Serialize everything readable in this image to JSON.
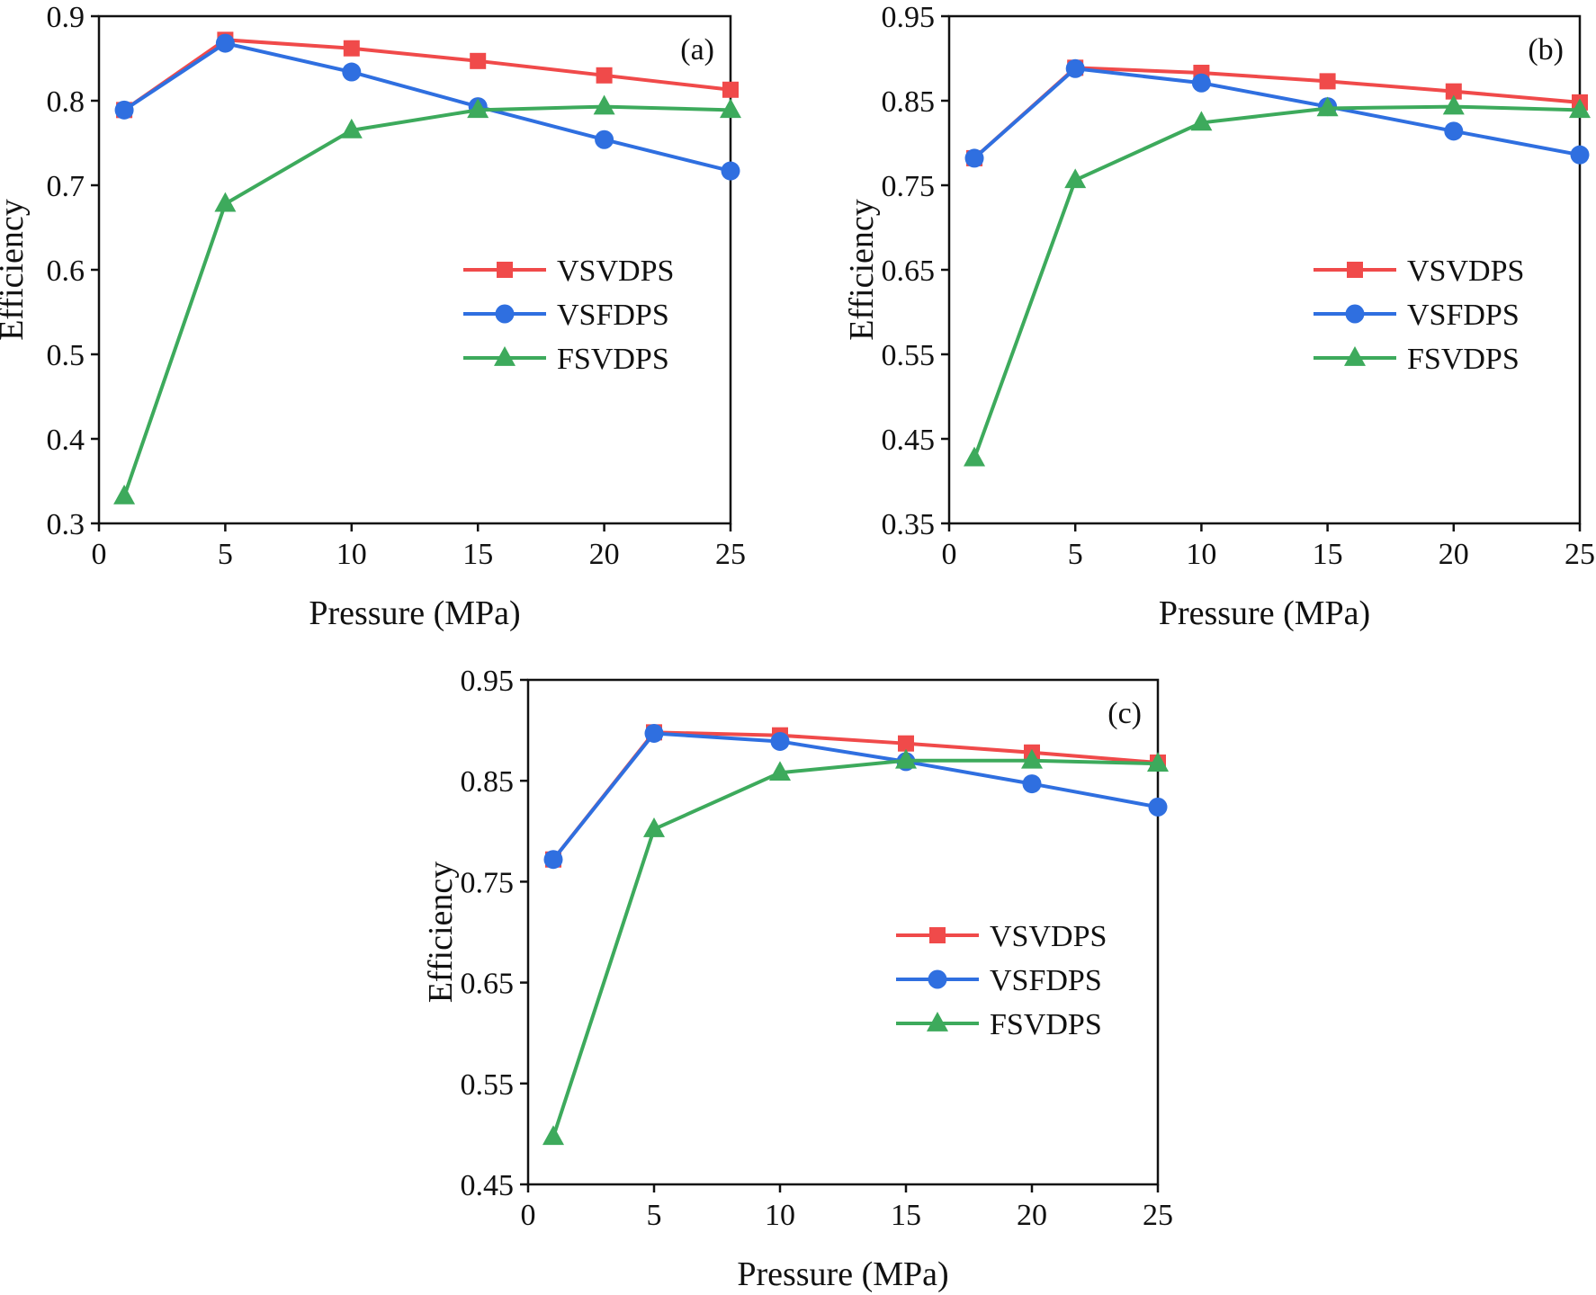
{
  "figure": {
    "name": "efficiency-vs-pressure-figure"
  },
  "chart_data": [
    {
      "type": "line",
      "panel_label": "(a)",
      "xlabel": "Pressure (MPa)",
      "ylabel": "Efficiency",
      "xlim": [
        0,
        25
      ],
      "ylim": [
        0.3,
        0.9
      ],
      "xticks": [
        0,
        5,
        10,
        15,
        20,
        25
      ],
      "xtick_labels": [
        "0",
        "5",
        "10",
        "15",
        "20",
        "25"
      ],
      "yticks": [
        0.3,
        0.4,
        0.5,
        0.6,
        0.7,
        0.8,
        0.9
      ],
      "ytick_labels": [
        "0.3",
        "0.4",
        "0.5",
        "0.6",
        "0.7",
        "0.8",
        "0.9"
      ],
      "legend_position": "center-right",
      "x": [
        1,
        5,
        10,
        15,
        20,
        25
      ],
      "series": [
        {
          "name": "VSVDPS",
          "color": "#f04a4a",
          "marker": "square",
          "values": [
            0.789,
            0.872,
            0.862,
            0.847,
            0.83,
            0.813
          ]
        },
        {
          "name": "VSFDPS",
          "color": "#2f6fe0",
          "marker": "circle",
          "values": [
            0.789,
            0.868,
            0.834,
            0.793,
            0.754,
            0.717
          ]
        },
        {
          "name": "FSVDPS",
          "color": "#3daa5c",
          "marker": "triangle",
          "values": [
            0.332,
            0.678,
            0.765,
            0.789,
            0.793,
            0.789
          ]
        }
      ]
    },
    {
      "type": "line",
      "panel_label": "(b)",
      "xlabel": "Pressure (MPa)",
      "ylabel": "Efficiency",
      "xlim": [
        0,
        25
      ],
      "ylim": [
        0.35,
        0.95
      ],
      "xticks": [
        0,
        5,
        10,
        15,
        20,
        25
      ],
      "xtick_labels": [
        "0",
        "5",
        "10",
        "15",
        "20",
        "25"
      ],
      "yticks": [
        0.35,
        0.45,
        0.55,
        0.65,
        0.75,
        0.85,
        0.95
      ],
      "ytick_labels": [
        "0.35",
        "0.45",
        "0.55",
        "0.65",
        "0.75",
        "0.85",
        "0.95"
      ],
      "legend_position": "center-right",
      "x": [
        1,
        5,
        10,
        15,
        20,
        25
      ],
      "series": [
        {
          "name": "VSVDPS",
          "color": "#f04a4a",
          "marker": "square",
          "values": [
            0.782,
            0.889,
            0.883,
            0.873,
            0.861,
            0.848
          ]
        },
        {
          "name": "VSFDPS",
          "color": "#2f6fe0",
          "marker": "circle",
          "values": [
            0.782,
            0.888,
            0.871,
            0.843,
            0.814,
            0.786
          ]
        },
        {
          "name": "FSVDPS",
          "color": "#3daa5c",
          "marker": "triangle",
          "values": [
            0.427,
            0.756,
            0.824,
            0.841,
            0.843,
            0.839
          ]
        }
      ]
    },
    {
      "type": "line",
      "panel_label": "(c)",
      "xlabel": "Pressure (MPa)",
      "ylabel": "Efficiency",
      "xlim": [
        0,
        25
      ],
      "ylim": [
        0.45,
        0.95
      ],
      "xticks": [
        0,
        5,
        10,
        15,
        20,
        25
      ],
      "xtick_labels": [
        "0",
        "5",
        "10",
        "15",
        "20",
        "25"
      ],
      "yticks": [
        0.45,
        0.55,
        0.65,
        0.75,
        0.85,
        0.95
      ],
      "ytick_labels": [
        "0.45",
        "0.55",
        "0.65",
        "0.75",
        "0.85",
        "0.95"
      ],
      "legend_position": "center-right",
      "x": [
        1,
        5,
        10,
        15,
        20,
        25
      ],
      "series": [
        {
          "name": "VSVDPS",
          "color": "#f04a4a",
          "marker": "square",
          "values": [
            0.772,
            0.898,
            0.895,
            0.887,
            0.878,
            0.868
          ]
        },
        {
          "name": "VSFDPS",
          "color": "#2f6fe0",
          "marker": "circle",
          "values": [
            0.772,
            0.897,
            0.889,
            0.869,
            0.847,
            0.824
          ]
        },
        {
          "name": "FSVDPS",
          "color": "#3daa5c",
          "marker": "triangle",
          "values": [
            0.497,
            0.802,
            0.858,
            0.87,
            0.87,
            0.867
          ]
        }
      ]
    }
  ]
}
